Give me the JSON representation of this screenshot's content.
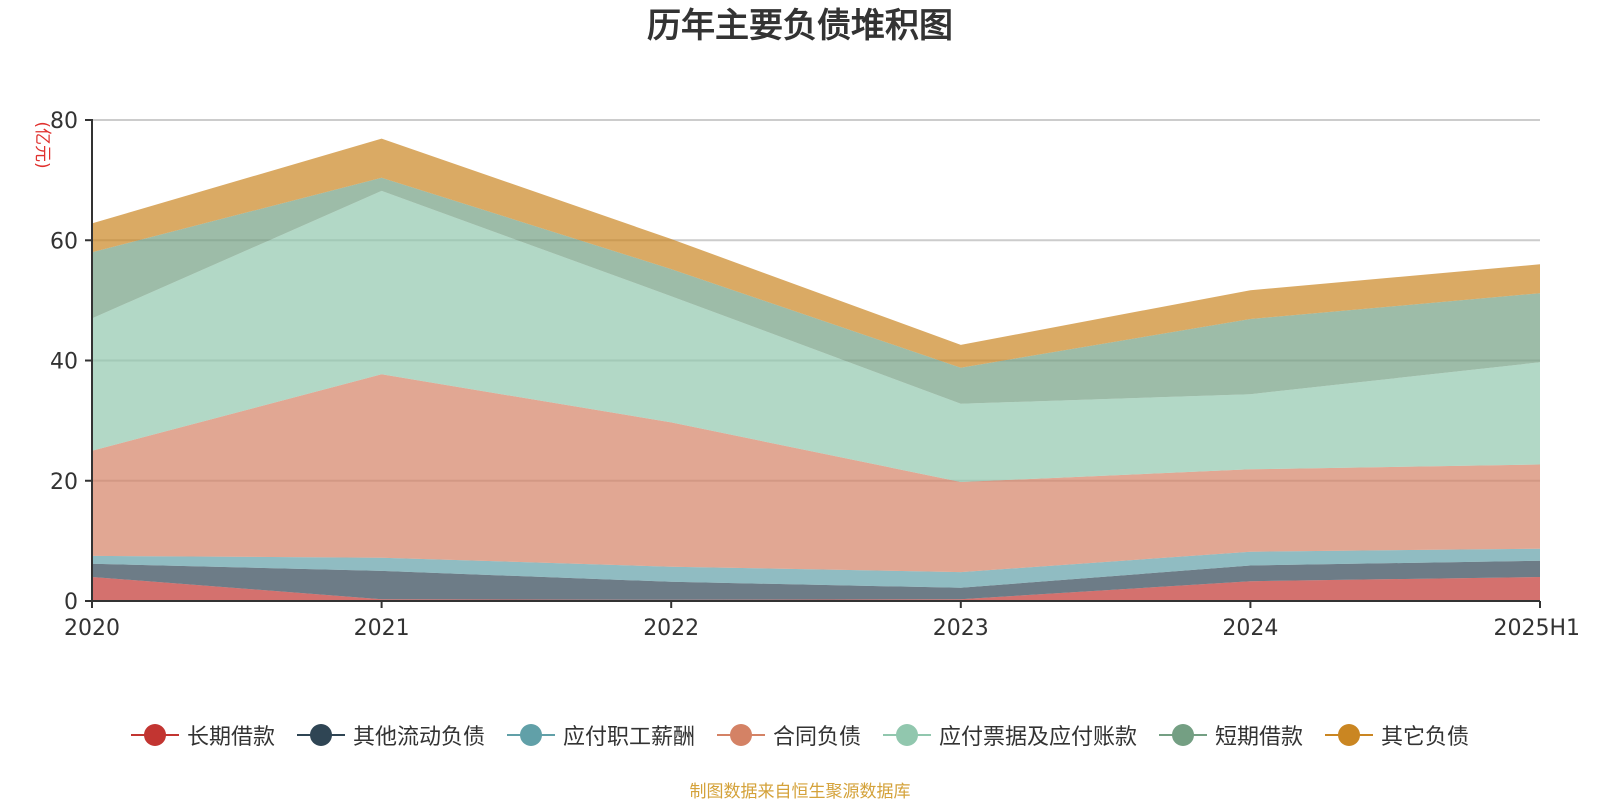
{
  "title": "历年主要负债堆积图",
  "source": "制图数据来自恒生聚源数据库",
  "chart_data": {
    "type": "area",
    "stacked": true,
    "title": "历年主要负债堆积图",
    "ylabel": "(亿元)",
    "xlabel": "",
    "categories": [
      "2020",
      "2021",
      "2022",
      "2023",
      "2024",
      "2025H1"
    ],
    "ylim": [
      0,
      80
    ],
    "yticks": [
      0,
      20,
      40,
      60,
      80
    ],
    "grid": true,
    "legend_position": "bottom",
    "series": [
      {
        "name": "长期借款",
        "color": "#c23531",
        "values": [
          4.0,
          0.3,
          0.2,
          0.3,
          3.3,
          4.0
        ]
      },
      {
        "name": "其他流动负债",
        "color": "#2f4554",
        "values": [
          2.2,
          4.7,
          3.0,
          1.9,
          2.6,
          2.7
        ]
      },
      {
        "name": "应付职工薪酬",
        "color": "#61a0a8",
        "values": [
          1.3,
          2.2,
          2.5,
          2.6,
          2.3,
          2.0
        ]
      },
      {
        "name": "合同负债",
        "color": "#d48265",
        "values": [
          17.5,
          30.5,
          24.0,
          15.0,
          13.7,
          14.0
        ]
      },
      {
        "name": "应付票据及应付账款",
        "color": "#91c7ae",
        "values": [
          22.0,
          30.5,
          21.0,
          13.0,
          12.5,
          17.0
        ]
      },
      {
        "name": "短期借款",
        "color": "#749f83",
        "values": [
          11.0,
          2.2,
          4.5,
          6.0,
          12.5,
          11.5
        ]
      },
      {
        "name": "其它负债",
        "color": "#ca8622",
        "values": [
          4.8,
          6.5,
          5.0,
          3.8,
          4.8,
          4.8
        ]
      }
    ]
  }
}
